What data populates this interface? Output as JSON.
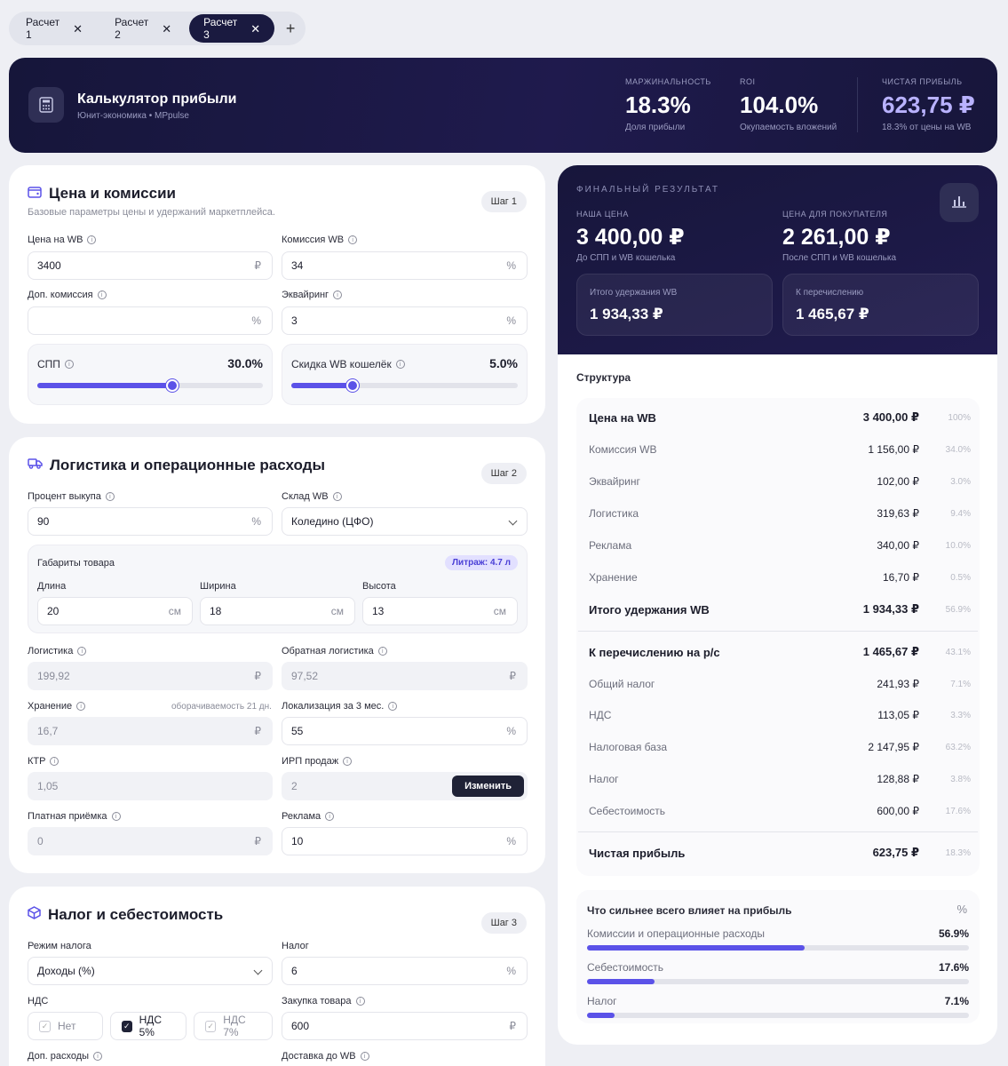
{
  "tabs": [
    {
      "label": "Расчет 1",
      "active": false
    },
    {
      "label": "Расчет 2",
      "active": false
    },
    {
      "label": "Расчет 3",
      "active": true
    }
  ],
  "header": {
    "title": "Калькулятор прибыли",
    "subtitle": "Юнит-экономика • MPpulse",
    "kpis": [
      {
        "label": "МАРЖИНАЛЬНОСТЬ",
        "value": "18.3%",
        "sub": "Доля прибыли"
      },
      {
        "label": "ROI",
        "value": "104.0%",
        "sub": "Окупаемость вложений"
      },
      {
        "label": "ЧИСТАЯ ПРИБЫЛЬ",
        "value": "623,75 ₽",
        "sub": "18.3% от цены на WB"
      }
    ]
  },
  "price_card": {
    "title": "Цена и комиссии",
    "subtitle": "Базовые параметры цены и удержаний маркетплейса.",
    "step": "Шаг 1",
    "price_label": "Цена на WB",
    "price_value": "3400",
    "price_unit": "₽",
    "commission_label": "Комиссия WB",
    "commission_value": "34",
    "commission_unit": "%",
    "extra_label": "Доп. комиссия",
    "extra_value": "",
    "extra_unit": "%",
    "acquiring_label": "Эквайринг",
    "acquiring_value": "3",
    "acquiring_unit": "%",
    "spp_label": "СПП",
    "spp_value": "30.0%",
    "spp_fraction": 0.6,
    "wallet_label": "Скидка WB кошелёк",
    "wallet_value": "5.0%",
    "wallet_fraction": 0.27
  },
  "logistics_card": {
    "title": "Логистика и операционные расходы",
    "step": "Шаг 2",
    "buyout_label": "Процент выкупа",
    "buyout_value": "90",
    "buyout_unit": "%",
    "warehouse_label": "Склад WB",
    "warehouse_value": "Коледино (ЦФО)",
    "dims_title": "Габариты товара",
    "litrage": "Литраж: 4.7 л",
    "length_label": "Длина",
    "length_value": "20",
    "width_label": "Ширина",
    "width_value": "18",
    "height_label": "Высота",
    "height_value": "13",
    "dim_unit": "см",
    "logistics_label": "Логистика",
    "logistics_value": "199,92",
    "reverse_label": "Обратная логистика",
    "reverse_value": "97,52",
    "storage_label": "Хранение",
    "storage_note": "оборачиваемость 21 дн.",
    "storage_value": "16,7",
    "localization_label": "Локализация за 3 мес.",
    "localization_value": "55",
    "ktr_label": "КТР",
    "ktr_value": "1,05",
    "irp_label": "ИРП продаж",
    "irp_value": "2",
    "irp_button": "Изменить",
    "paid_label": "Платная приёмка",
    "paid_value": "0",
    "ads_label": "Реклама",
    "ads_value": "10",
    "rub": "₽",
    "pct": "%"
  },
  "tax_card": {
    "title": "Налог и себестоимость",
    "step": "Шаг 3",
    "regime_label": "Режим налога",
    "regime_value": "Доходы (%)",
    "tax_label": "Налог",
    "tax_value": "6",
    "tax_unit": "%",
    "vat_label": "НДС",
    "vat_options": [
      {
        "label": "Нет",
        "checked": false
      },
      {
        "label": "НДС 5%",
        "checked": true
      },
      {
        "label": "НДС 7%",
        "checked": false
      }
    ],
    "purchase_label": "Закупка товара",
    "purchase_value": "600",
    "purchase_unit": "₽",
    "extra_costs_label": "Доп. расходы",
    "delivery_label": "Доставка до WB"
  },
  "result": {
    "caption": "ФИНАЛЬНЫЙ РЕЗУЛЬТАТ",
    "our_price_label": "НАША ЦЕНА",
    "our_price": "3 400,00 ₽",
    "our_price_sub": "До СПП и WB кошелька",
    "buyer_price_label": "ЦЕНА ДЛЯ ПОКУПАТЕЛЯ",
    "buyer_price": "2 261,00 ₽",
    "buyer_price_sub": "После СПП и WB кошелька",
    "withheld_label": "Итого удержания WB",
    "withheld_value": "1 934,33 ₽",
    "payout_label": "К перечислению",
    "payout_value": "1 465,67 ₽"
  },
  "structure": {
    "title": "Структура",
    "rows": [
      {
        "name": "Цена на WB",
        "amount": "3 400,00 ₽",
        "pct": "100%",
        "bold": true
      },
      {
        "name": "Комиссия WB",
        "amount": "1 156,00 ₽",
        "pct": "34.0%",
        "bold": false
      },
      {
        "name": "Эквайринг",
        "amount": "102,00 ₽",
        "pct": "3.0%",
        "bold": false
      },
      {
        "name": "Логистика",
        "amount": "319,63 ₽",
        "pct": "9.4%",
        "bold": false
      },
      {
        "name": "Реклама",
        "amount": "340,00 ₽",
        "pct": "10.0%",
        "bold": false
      },
      {
        "name": "Хранение",
        "amount": "16,70 ₽",
        "pct": "0.5%",
        "bold": false
      },
      {
        "name": "Итого удержания WB",
        "amount": "1 934,33 ₽",
        "pct": "56.9%",
        "bold": true
      },
      {
        "name": "К перечислению на р/с",
        "amount": "1 465,67 ₽",
        "pct": "43.1%",
        "bold": true
      },
      {
        "name": "Общий налог",
        "amount": "241,93 ₽",
        "pct": "7.1%",
        "bold": false
      },
      {
        "name": "НДС",
        "amount": "113,05 ₽",
        "pct": "3.3%",
        "bold": false
      },
      {
        "name": "Налоговая база",
        "amount": "2 147,95 ₽",
        "pct": "63.2%",
        "bold": false
      },
      {
        "name": "Налог",
        "amount": "128,88 ₽",
        "pct": "3.8%",
        "bold": false
      },
      {
        "name": "Себестоимость",
        "amount": "600,00 ₽",
        "pct": "17.6%",
        "bold": false
      },
      {
        "name": "Чистая прибыль",
        "amount": "623,75 ₽",
        "pct": "18.3%",
        "bold": true
      }
    ]
  },
  "impact": {
    "title": "Что сильнее всего влияет на прибыль",
    "icon": "%",
    "items": [
      {
        "name": "Комиссии и операционные расходы",
        "value": "56.9%",
        "fraction": 0.569
      },
      {
        "name": "Себестоимость",
        "value": "17.6%",
        "fraction": 0.176
      },
      {
        "name": "Налог",
        "value": "7.1%",
        "fraction": 0.071
      }
    ]
  }
}
